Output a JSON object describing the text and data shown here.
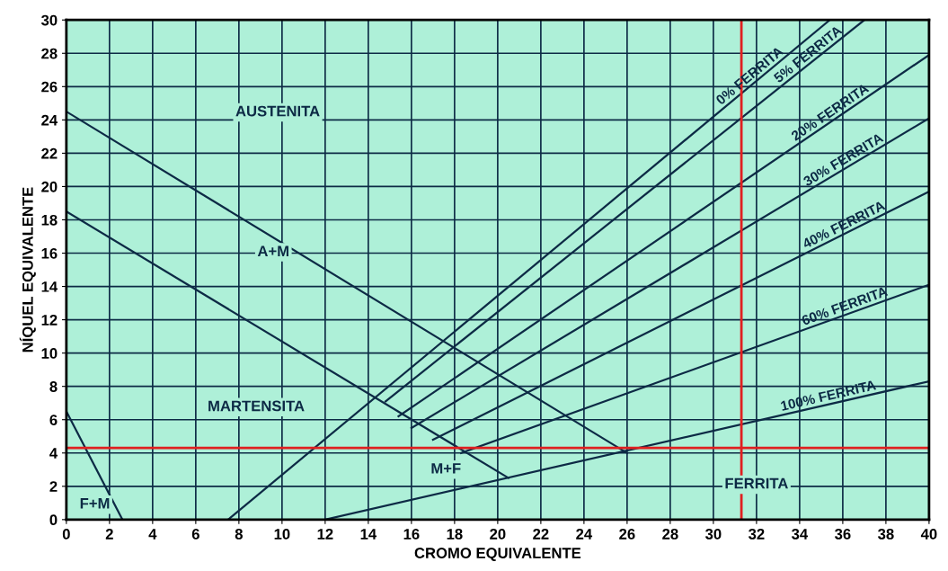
{
  "chart_data": {
    "type": "line",
    "xlabel": "CROMO EQUIVALENTE",
    "ylabel": "NÍQUEL EQUIVALENTE",
    "xlim": [
      0,
      40
    ],
    "ylim": [
      0,
      30
    ],
    "xticks": [
      0,
      2,
      4,
      6,
      8,
      10,
      12,
      14,
      16,
      18,
      20,
      22,
      24,
      26,
      28,
      30,
      32,
      34,
      36,
      38,
      40
    ],
    "yticks": [
      0,
      2,
      4,
      6,
      8,
      10,
      12,
      14,
      16,
      18,
      20,
      22,
      24,
      26,
      28,
      30
    ],
    "grid": true,
    "marker": "none",
    "line_style": "solid",
    "series": [
      {
        "color": "#0d2a45",
        "x": [
          0,
          26
        ],
        "values": [
          24.5,
          4
        ]
      },
      {
        "color": "#0d2a45",
        "x": [
          0,
          20.5
        ],
        "values": [
          18.5,
          2.5
        ]
      },
      {
        "color": "#0d2a45",
        "x": [
          0,
          2.6
        ],
        "values": [
          6.5,
          0
        ]
      },
      {
        "name": "0% FERRITA",
        "color": "#0d2a45",
        "x": [
          7.5,
          35.4
        ],
        "values": [
          0,
          30
        ]
      },
      {
        "name": "5% FERRITA",
        "color": "#0d2a45",
        "x": [
          14.8,
          37
        ],
        "values": [
          7.1,
          30
        ]
      },
      {
        "name": "20% FERRITA",
        "color": "#0d2a45",
        "x": [
          15.4,
          40
        ],
        "values": [
          6.2,
          27.9
        ]
      },
      {
        "name": "30% FERRITA",
        "color": "#0d2a45",
        "x": [
          16,
          40
        ],
        "values": [
          5.5,
          24.1
        ]
      },
      {
        "name": "40% FERRITA",
        "color": "#0d2a45",
        "x": [
          17,
          40
        ],
        "values": [
          4.8,
          19.7
        ]
      },
      {
        "name": "60% FERRITA",
        "color": "#0d2a45",
        "x": [
          18.3,
          40
        ],
        "values": [
          4.0,
          14.1
        ]
      },
      {
        "name": "100% FERRITA",
        "color": "#0d2a45",
        "x": [
          12,
          40
        ],
        "values": [
          0,
          8.3
        ]
      }
    ],
    "ref_lines": [
      {
        "axis": "x",
        "value": 31.3,
        "label": null,
        "color": "#e02020"
      },
      {
        "axis": "y",
        "value": 4.3,
        "label": null,
        "color": "#e02020"
      }
    ],
    "annotations": [
      "AUSTENITA",
      "A+M",
      "MARTENSITA",
      "M+F",
      "F+M",
      "FERRITA"
    ]
  }
}
